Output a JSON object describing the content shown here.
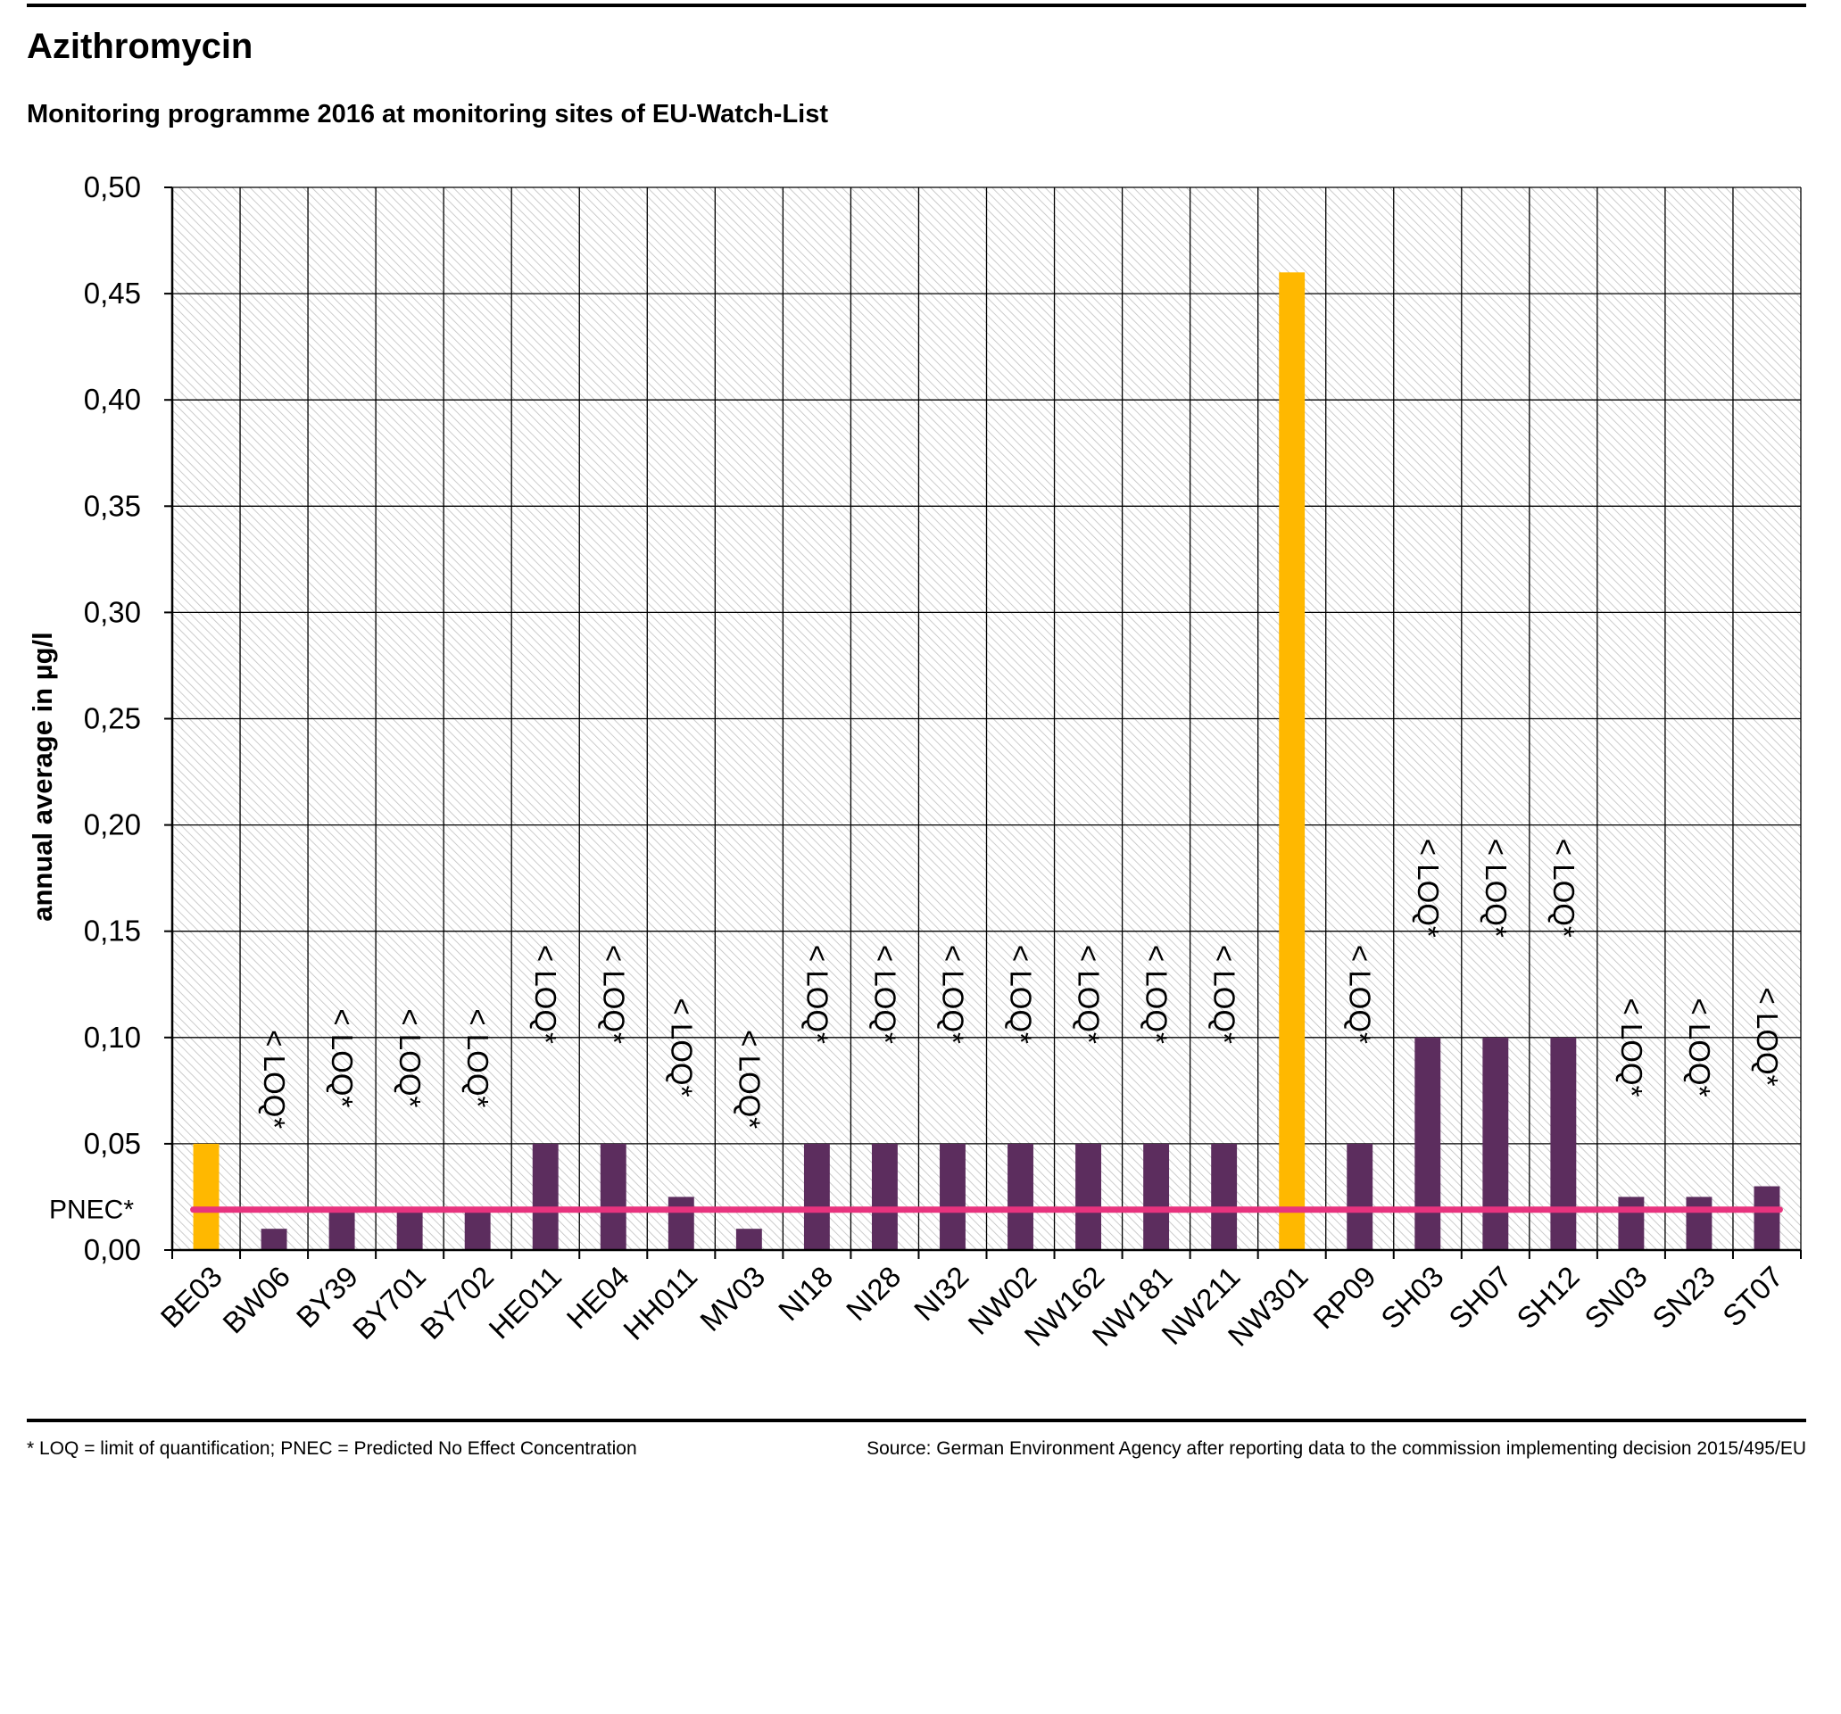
{
  "header": {
    "title": "Azithromycin",
    "subtitle": "Monitoring programme 2016 at monitoring sites of EU-Watch-List"
  },
  "footer": {
    "note": "* LOQ = limit of quantification; PNEC = Predicted No Effect Concentration",
    "source": "Source: German Environment Agency after reporting data to the commission implementing decision 2015/495/EU"
  },
  "chart_data": {
    "type": "bar",
    "title": "Azithromycin",
    "xlabel": "",
    "ylabel": "annual average in µg/l",
    "ylim": [
      0,
      0.5
    ],
    "yticks": [
      "0,00",
      "0,05",
      "0,10",
      "0,15",
      "0,20",
      "0,25",
      "0,30",
      "0,35",
      "0,40",
      "0,45",
      "0,50"
    ],
    "grid": true,
    "categories": [
      "BE03",
      "BW06",
      "BY39",
      "BY701",
      "BY702",
      "HE011",
      "HE04",
      "HH011",
      "MV03",
      "NI18",
      "NI28",
      "NI32",
      "NW02",
      "NW162",
      "NW181",
      "NW211",
      "NW301",
      "RP09",
      "SH03",
      "SH07",
      "SH12",
      "SN03",
      "SN23",
      "ST07"
    ],
    "values": [
      0.05,
      0.01,
      0.02,
      0.02,
      0.02,
      0.05,
      0.05,
      0.025,
      0.01,
      0.05,
      0.05,
      0.05,
      0.05,
      0.05,
      0.05,
      0.05,
      0.46,
      0.05,
      0.1,
      0.1,
      0.1,
      0.025,
      0.025,
      0.03
    ],
    "below_loq": [
      false,
      true,
      true,
      true,
      true,
      true,
      true,
      true,
      true,
      true,
      true,
      true,
      true,
      true,
      true,
      true,
      false,
      true,
      true,
      true,
      true,
      true,
      true,
      true
    ],
    "loq_label": "< LOQ*",
    "reference_line": {
      "label": "PNEC*",
      "value": 0.019
    },
    "colors": {
      "measured": "#FFB800",
      "below_loq": "#5C2D5E",
      "pnec": "#E8337E",
      "grid": "#000000",
      "hatch": "#BFBFBF"
    }
  }
}
